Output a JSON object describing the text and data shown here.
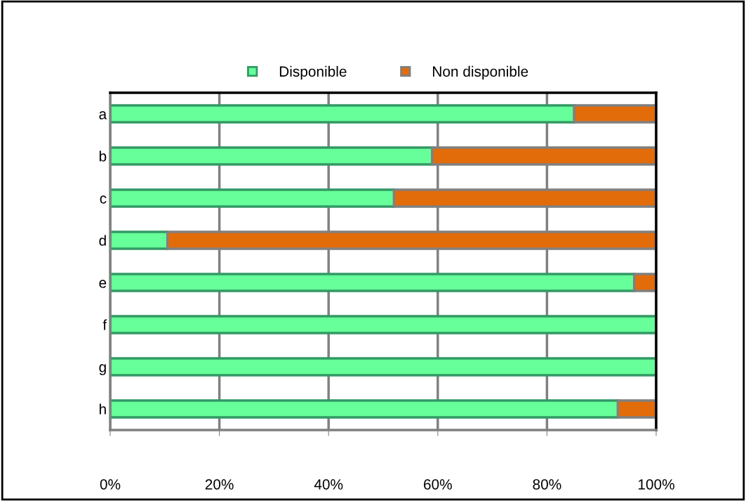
{
  "chart_data": {
    "type": "bar",
    "orientation": "horizontal",
    "stacked": true,
    "categories": [
      "a",
      "b",
      "c",
      "d",
      "e",
      "f",
      "g",
      "h"
    ],
    "series": [
      {
        "name": "Disponible",
        "color": "#66ff99",
        "values": [
          85,
          59,
          52,
          10.5,
          96,
          100,
          100,
          93
        ]
      },
      {
        "name": "Non disponible",
        "color": "#e36c0a",
        "values": [
          15,
          41,
          48,
          89.5,
          4,
          0,
          0,
          7
        ]
      }
    ],
    "xlim": [
      0,
      100
    ],
    "xticks": [
      {
        "value": 0,
        "label": "0%"
      },
      {
        "value": 20,
        "label": "20%"
      },
      {
        "value": 40,
        "label": "40%"
      },
      {
        "value": 60,
        "label": "60%"
      },
      {
        "value": 80,
        "label": "80%"
      },
      {
        "value": 100,
        "label": "100%"
      }
    ],
    "grid": "x",
    "legend": "top",
    "marker": "square"
  }
}
